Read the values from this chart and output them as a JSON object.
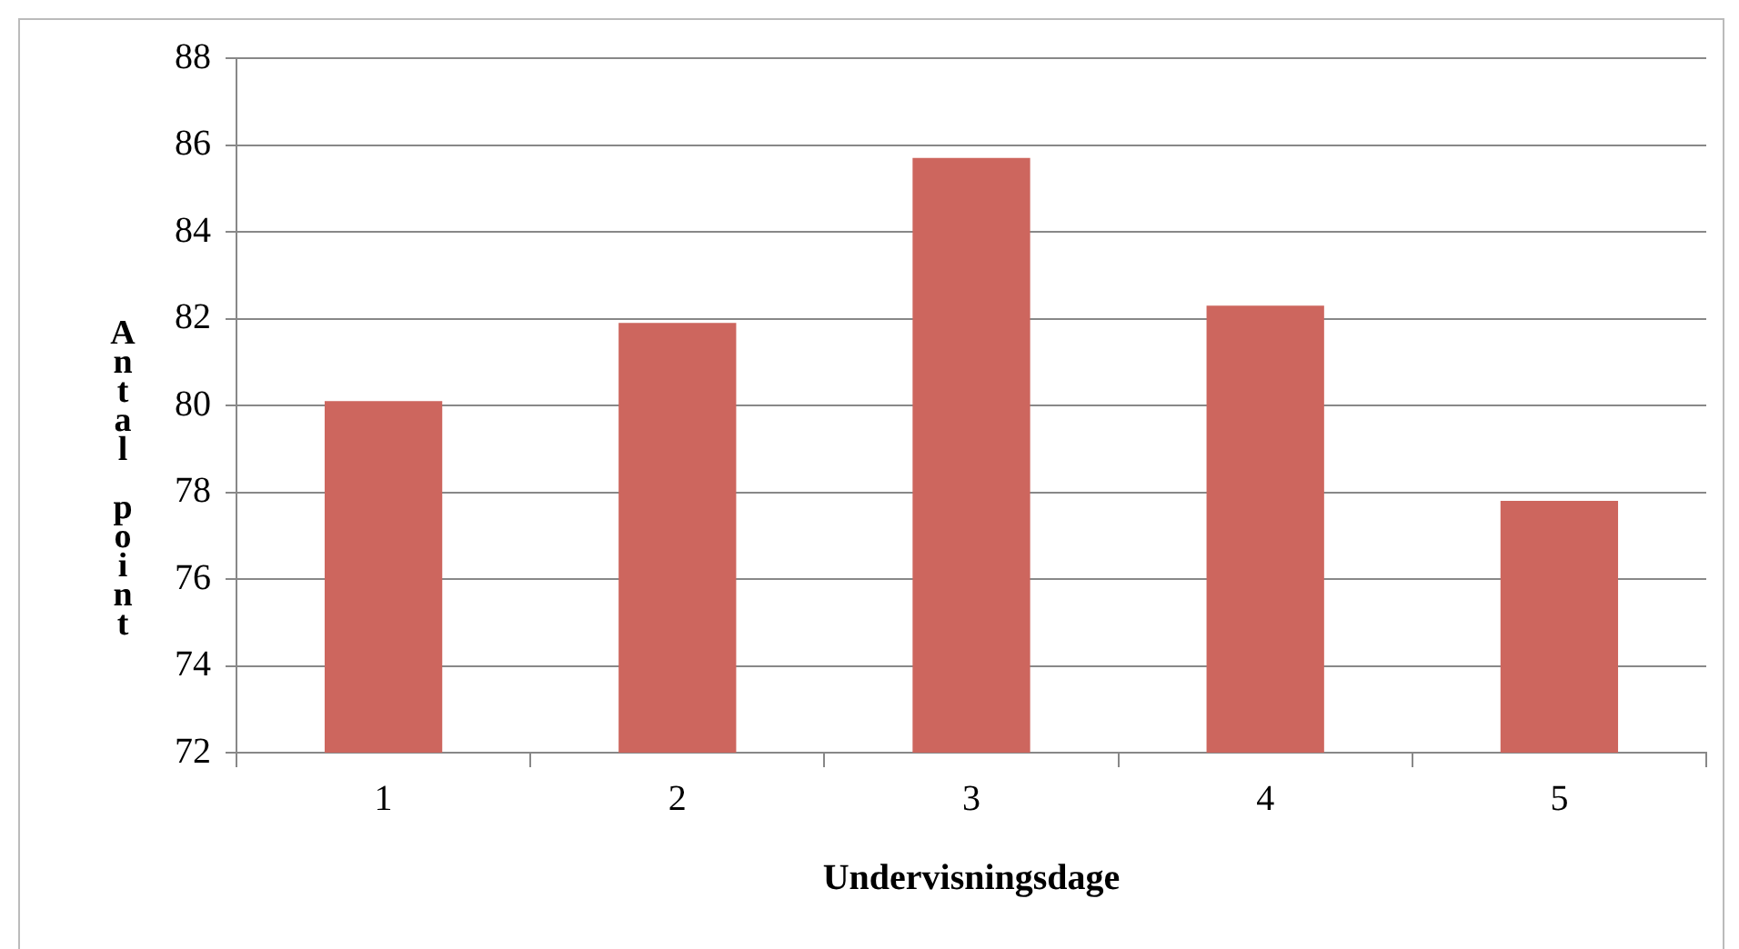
{
  "chart_data": {
    "type": "bar",
    "xlabel": "Undervisningsdage",
    "ylabel": "Antal point",
    "categories": [
      "1",
      "2",
      "3",
      "4",
      "5"
    ],
    "values": [
      80.1,
      81.9,
      85.7,
      82.3,
      77.8
    ],
    "color": "#cd665e",
    "ylim": [
      72,
      88
    ],
    "yticks": [
      72,
      74,
      76,
      78,
      80,
      82,
      84,
      86,
      88
    ],
    "grid": "y",
    "legend": false
  }
}
